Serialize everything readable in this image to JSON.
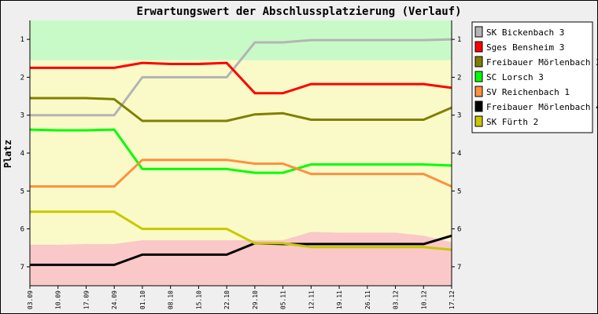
{
  "chart_data": {
    "type": "line",
    "title": "Erwartungswert der Abschlussplatzierung (Verlauf)",
    "xlabel": "",
    "ylabel": "Platz",
    "categories": [
      "03.09",
      "10.09",
      "17.09",
      "24.09",
      "01.10",
      "08.10",
      "15.10",
      "22.10",
      "29.10",
      "05.11",
      "12.11",
      "19.11",
      "26.11",
      "03.12",
      "10.12",
      "17.12"
    ],
    "y_ticks": [
      1,
      2,
      3,
      4,
      5,
      6,
      7
    ],
    "ylim": [
      0.5,
      7.5
    ],
    "y_inverted": true,
    "grid": false,
    "legend_position": "right",
    "zones": {
      "promotion": {
        "color": "#c8fac8",
        "upper": [
          1.55,
          1.55,
          1.55,
          1.55,
          1.55,
          1.55,
          1.55,
          1.55,
          1.55,
          1.55,
          1.55,
          1.55,
          1.55,
          1.55,
          1.55,
          1.55
        ]
      },
      "middle": {
        "color": "#fafac8"
      },
      "relegation": {
        "color": "#fac8c8",
        "upper": [
          6.42,
          6.42,
          6.4,
          6.4,
          6.3,
          6.3,
          6.3,
          6.3,
          6.3,
          6.3,
          6.08,
          6.1,
          6.1,
          6.1,
          6.18,
          6.35
        ]
      }
    },
    "series": [
      {
        "name": "SK Bickenbach 3",
        "color": "#b4b4b4",
        "values": [
          3.0,
          3.0,
          3.0,
          3.0,
          2.0,
          2.0,
          2.0,
          2.0,
          1.08,
          1.08,
          1.02,
          1.02,
          1.02,
          1.02,
          1.02,
          1.0
        ]
      },
      {
        "name": "Sges Bensheim 3",
        "color": "#ff0000",
        "values": [
          1.75,
          1.75,
          1.75,
          1.75,
          1.62,
          1.65,
          1.65,
          1.62,
          2.42,
          2.42,
          2.18,
          2.18,
          2.18,
          2.18,
          2.18,
          2.28
        ]
      },
      {
        "name": "Freibauer Mörlenbach 3",
        "color": "#808000",
        "values": [
          2.55,
          2.55,
          2.55,
          2.58,
          3.15,
          3.15,
          3.15,
          3.15,
          2.98,
          2.95,
          3.12,
          3.12,
          3.12,
          3.12,
          3.12,
          2.8
        ]
      },
      {
        "name": "SC Lorsch 3",
        "color": "#00ff00",
        "values": [
          3.38,
          3.4,
          3.4,
          3.38,
          4.42,
          4.42,
          4.42,
          4.42,
          4.52,
          4.52,
          4.3,
          4.3,
          4.3,
          4.3,
          4.3,
          4.33
        ]
      },
      {
        "name": "SV Reichenbach 1",
        "color": "#ff9040",
        "values": [
          4.88,
          4.88,
          4.88,
          4.88,
          4.18,
          4.18,
          4.18,
          4.18,
          4.28,
          4.28,
          4.55,
          4.55,
          4.55,
          4.55,
          4.55,
          4.88
        ]
      },
      {
        "name": "Freibauer Mörlenbach 4",
        "color": "#000000",
        "values": [
          6.95,
          6.95,
          6.95,
          6.95,
          6.68,
          6.68,
          6.68,
          6.68,
          6.38,
          6.4,
          6.4,
          6.4,
          6.4,
          6.4,
          6.4,
          6.18
        ]
      },
      {
        "name": "SK Fürth 2",
        "color": "#c8c800",
        "values": [
          5.55,
          5.55,
          5.55,
          5.55,
          6.0,
          6.0,
          6.0,
          6.0,
          6.38,
          6.38,
          6.48,
          6.48,
          6.48,
          6.48,
          6.48,
          6.55
        ]
      }
    ]
  }
}
